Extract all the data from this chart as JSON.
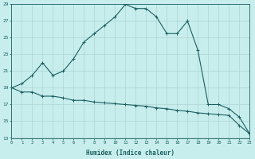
{
  "xlabel": "Humidex (Indice chaleur)",
  "bg_color": "#c8eded",
  "grid_color": "#aed4d4",
  "line_color": "#1a6060",
  "upper_x": [
    0,
    1,
    2,
    3,
    4,
    5,
    6,
    7,
    8,
    9,
    10,
    11,
    12,
    13,
    14,
    15,
    16,
    17,
    18,
    19,
    20,
    21,
    22,
    23
  ],
  "upper_y": [
    19,
    19.5,
    20.5,
    22,
    20.5,
    21,
    22.5,
    24.5,
    25.5,
    26.5,
    27.5,
    29,
    28.5,
    28.5,
    27.5,
    25.5,
    25.5,
    27,
    23.5,
    17,
    17,
    16.5,
    15.5,
    13.5
  ],
  "lower_x": [
    0,
    1,
    2,
    3,
    4,
    5,
    6,
    7,
    8,
    9,
    10,
    11,
    12,
    13,
    14,
    15,
    16,
    17,
    18,
    19,
    20,
    21,
    22,
    23
  ],
  "lower_y": [
    19,
    18.5,
    18.5,
    18,
    18,
    17.8,
    17.5,
    17.5,
    17.3,
    17.2,
    17.1,
    17.0,
    16.9,
    16.8,
    16.6,
    16.5,
    16.3,
    16.2,
    16.0,
    15.9,
    15.8,
    15.7,
    14.5,
    13.5
  ],
  "ylim": [
    13,
    29
  ],
  "xlim": [
    0,
    23
  ],
  "yticks": [
    13,
    15,
    17,
    19,
    21,
    23,
    25,
    27,
    29
  ],
  "xticks": [
    0,
    1,
    2,
    3,
    4,
    5,
    6,
    7,
    8,
    9,
    10,
    11,
    12,
    13,
    14,
    15,
    16,
    17,
    18,
    19,
    20,
    21,
    22,
    23
  ]
}
